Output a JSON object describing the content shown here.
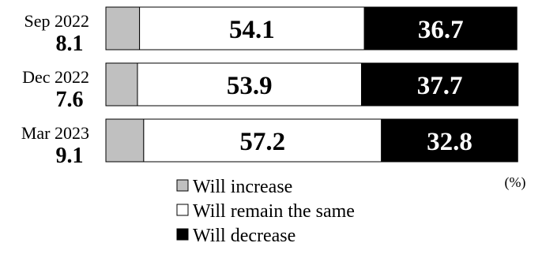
{
  "chart_data": {
    "type": "bar",
    "orientation": "horizontal",
    "stacked": true,
    "categories": [
      "Sep 2022",
      "Dec 2022",
      "Mar 2023"
    ],
    "series": [
      {
        "name": "Will increase",
        "values": [
          8.1,
          7.6,
          9.1
        ],
        "color": "#c0c0c0"
      },
      {
        "name": "Will remain the same",
        "values": [
          54.1,
          53.9,
          57.2
        ],
        "color": "#ffffff"
      },
      {
        "name": "Will decrease",
        "values": [
          36.7,
          37.7,
          32.8
        ],
        "color": "#000000"
      }
    ],
    "value_labels": {
      "Will increase": [
        "8.1",
        "7.6",
        "9.1"
      ],
      "Will remain the same": [
        "54.1",
        "53.9",
        "57.2"
      ],
      "Will decrease": [
        "36.7",
        "37.7",
        "32.8"
      ]
    },
    "unit_label": "(%)",
    "legend": {
      "placement": "bottom",
      "entries": [
        "Will increase",
        "Will remain the same",
        "Will decrease"
      ]
    },
    "xlim": [
      0,
      100
    ],
    "grid": false,
    "title": "",
    "xlabel": "",
    "ylabel": ""
  }
}
